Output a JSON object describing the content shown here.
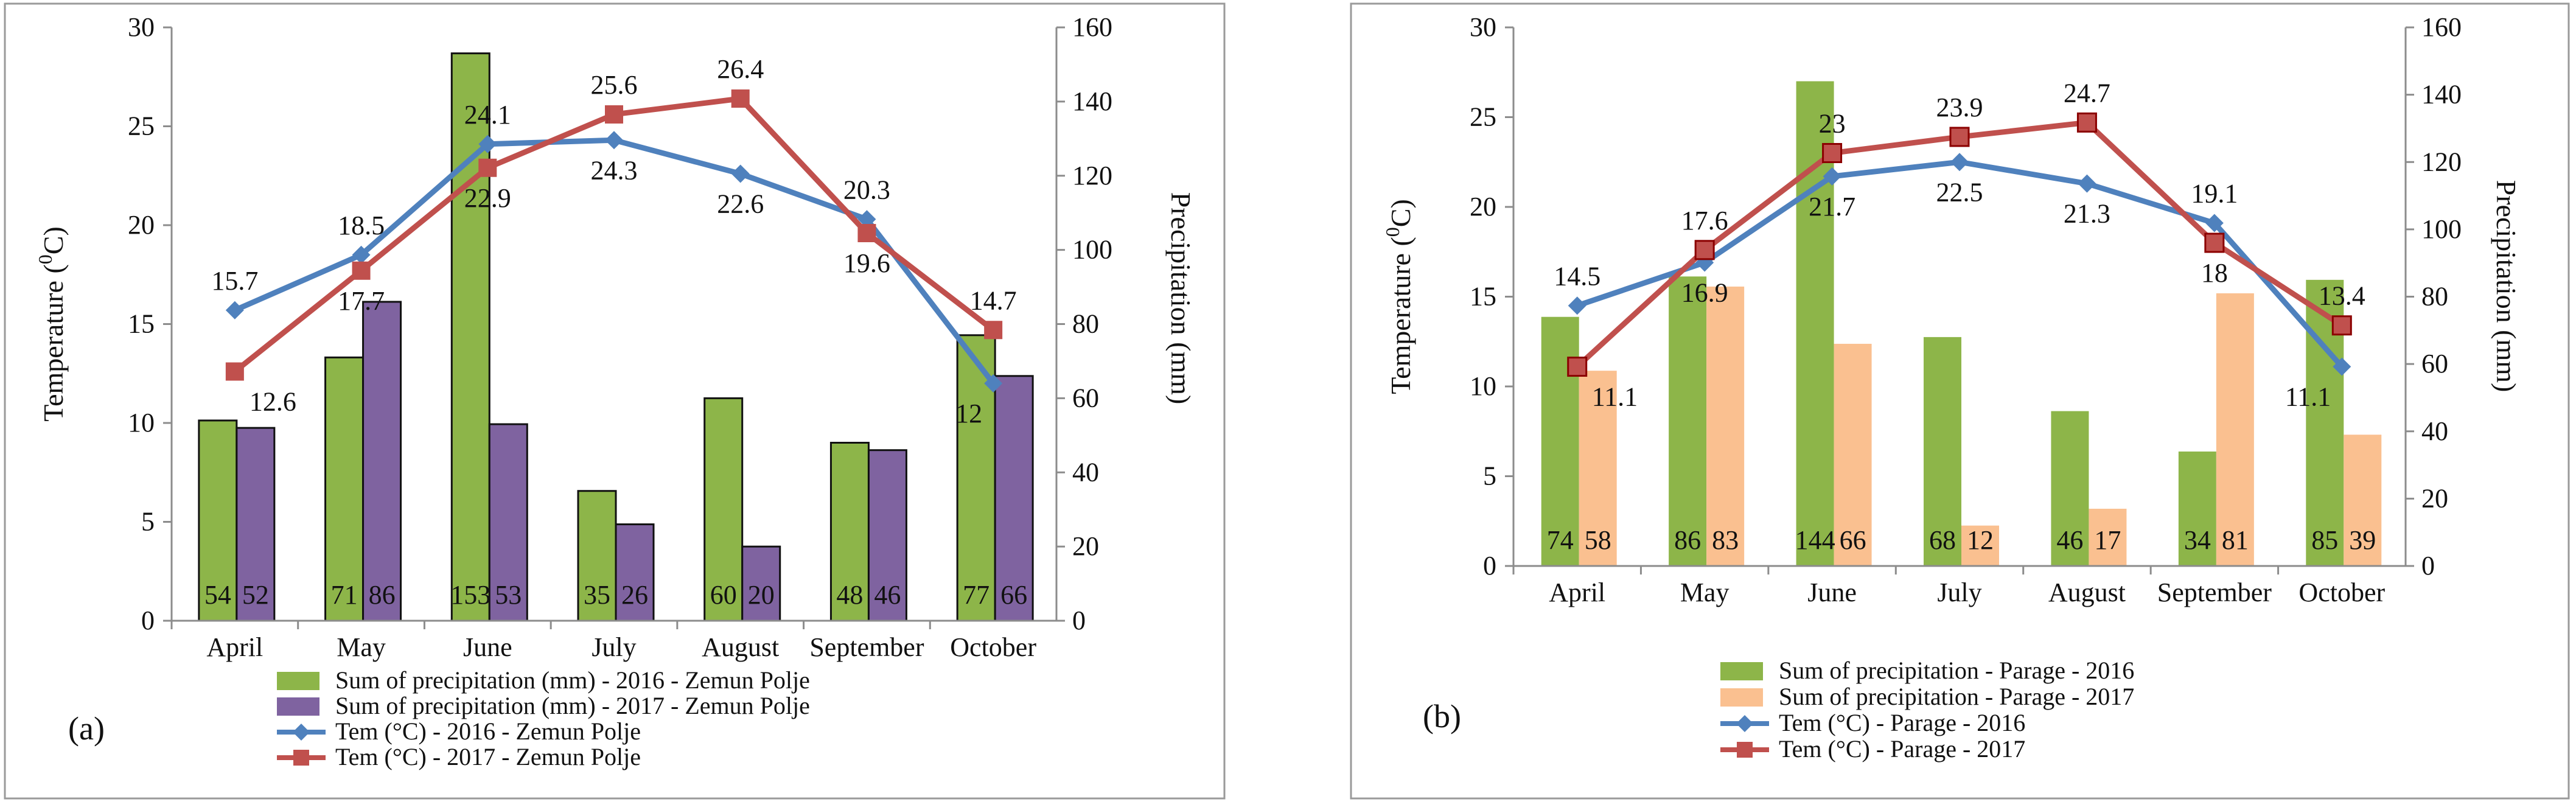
{
  "panel_labels": [
    "(a)",
    "(b)"
  ],
  "chart_data": [
    {
      "type": "bar",
      "panel": "(a)",
      "title": "",
      "categories": [
        "April",
        "May",
        "June",
        "July",
        "August",
        "September",
        "October"
      ],
      "ylabel": "Temperature (°C)",
      "ylabel_super": "0",
      "y2label": "Precipitation  (mm)",
      "ylim": [
        0,
        30
      ],
      "y2lim": [
        0,
        160
      ],
      "yticks": [
        0,
        5,
        10,
        15,
        20,
        25,
        30
      ],
      "y2ticks": [
        0,
        20,
        40,
        60,
        80,
        100,
        120,
        140,
        160
      ],
      "grid": false,
      "legend_position": "bottom",
      "bar_series": [
        {
          "name": "Sum of precipitation (mm) - 2016 - Zemun Polje",
          "color": "#8db549",
          "values": [
            54,
            71,
            153,
            35,
            60,
            48,
            77
          ]
        },
        {
          "name": "Sum of precipitation (mm) - 2017 - Zemun Polje",
          "color": "#7f63a0",
          "values": [
            52,
            86,
            53,
            26,
            20,
            46,
            66
          ]
        }
      ],
      "line_series": [
        {
          "name": "Tem (°C) - 2016 - Zemun Polje",
          "color": "#4f81bd",
          "marker": "diamond",
          "values": [
            15.7,
            18.5,
            24.1,
            24.3,
            22.6,
            20.3,
            12
          ]
        },
        {
          "name": "Tem (°C) - 2017 - Zemun Polje",
          "color": "#c0504d",
          "marker": "square",
          "values": [
            12.6,
            17.7,
            22.9,
            25.6,
            26.4,
            19.6,
            14.7
          ]
        }
      ]
    },
    {
      "type": "bar",
      "panel": "(b)",
      "title": "",
      "categories": [
        "April",
        "May",
        "June",
        "July",
        "August",
        "September",
        "October"
      ],
      "ylabel": "Temperature (°C)",
      "ylabel_super": "0",
      "y2label": "Precipitation (mm)",
      "ylim": [
        0,
        30
      ],
      "y2lim": [
        0,
        160
      ],
      "yticks": [
        0,
        5,
        10,
        15,
        20,
        25,
        30
      ],
      "y2ticks": [
        0,
        20,
        40,
        60,
        80,
        100,
        120,
        140,
        160
      ],
      "grid": false,
      "legend_position": "bottom",
      "bar_series": [
        {
          "name": "Sum of precipitation - Parage - 2016",
          "color": "#8db549",
          "values": [
            74,
            86,
            144,
            68,
            46,
            34,
            85
          ]
        },
        {
          "name": "Sum of precipitation - Parage - 2017",
          "color": "#fac090",
          "values": [
            58,
            83,
            66,
            12,
            17,
            81,
            39
          ]
        }
      ],
      "line_series": [
        {
          "name": "Tem (°C) - Parage - 2016",
          "color": "#4f81bd",
          "marker": "diamond",
          "values": [
            14.5,
            16.9,
            21.7,
            22.5,
            21.3,
            19.1,
            11.1
          ]
        },
        {
          "name": "Tem (°C) - Parage - 2017",
          "color": "#c0504d",
          "marker": "square",
          "values": [
            11.1,
            17.6,
            23,
            23.9,
            24.7,
            18,
            13.4
          ]
        }
      ]
    }
  ]
}
